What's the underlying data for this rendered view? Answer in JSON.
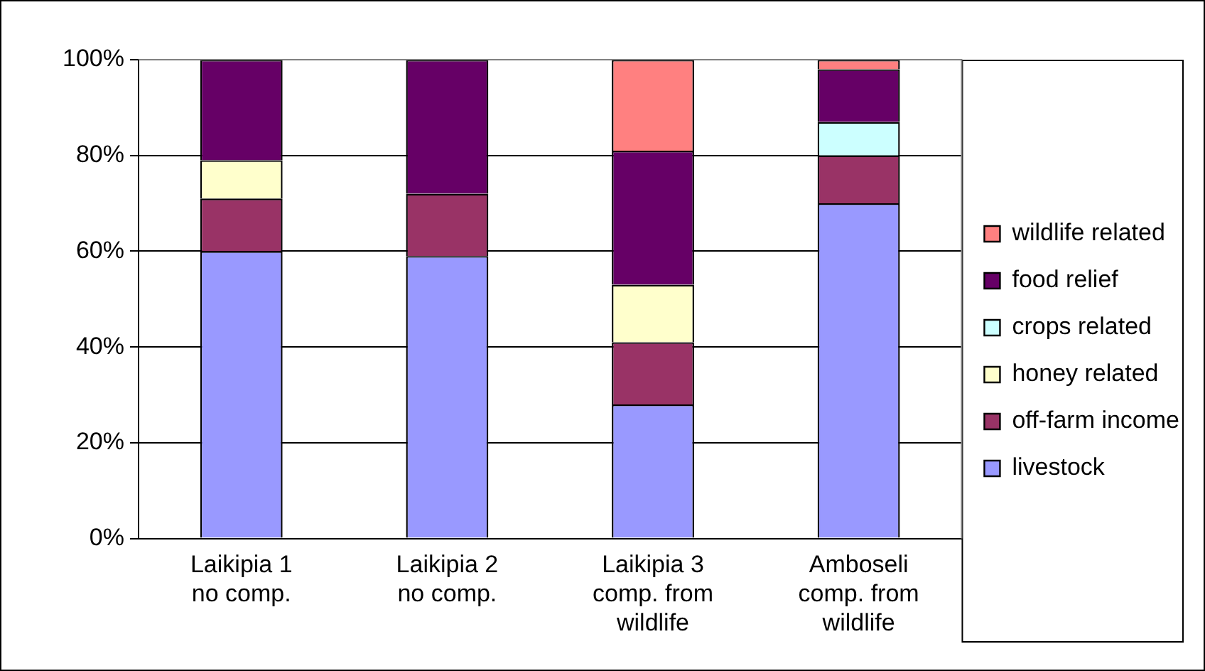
{
  "chart_data": {
    "type": "bar",
    "stacked": true,
    "categories": [
      "Laikipia 1 no comp.",
      "Laikipia 2 no comp.",
      "Laikipia 3 comp. from wildlife",
      "Amboseli comp. from wildlife"
    ],
    "series": [
      {
        "name": "livestock",
        "color": "#9999ff",
        "values": [
          60,
          59,
          28,
          70
        ]
      },
      {
        "name": "off-farm income",
        "color": "#993366",
        "values": [
          11,
          13,
          13,
          10
        ]
      },
      {
        "name": "honey related",
        "color": "#ffffcc",
        "values": [
          8,
          0,
          12,
          0
        ]
      },
      {
        "name": "crops related",
        "color": "#ccffff",
        "values": [
          0,
          0,
          0,
          7
        ]
      },
      {
        "name": "food relief",
        "color": "#660066",
        "values": [
          21,
          28,
          28,
          11
        ]
      },
      {
        "name": "wildlife related",
        "color": "#ff8080",
        "values": [
          0,
          0,
          19,
          2
        ]
      }
    ],
    "ylim": [
      0,
      100
    ],
    "yticks": [
      {
        "value": 0,
        "label": "0%"
      },
      {
        "value": 20,
        "label": "20%"
      },
      {
        "value": 40,
        "label": "40%"
      },
      {
        "value": 60,
        "label": "60%"
      },
      {
        "value": 80,
        "label": "80%"
      },
      {
        "value": 100,
        "label": "100%"
      }
    ],
    "grid": "y",
    "legend": "right"
  }
}
